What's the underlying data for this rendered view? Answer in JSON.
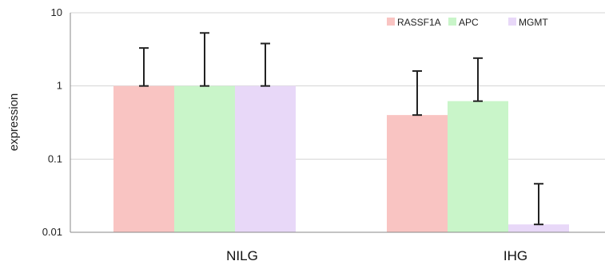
{
  "chart_data": {
    "type": "bar",
    "title": "",
    "xlabel": "",
    "ylabel": "expression",
    "yscale": "log",
    "ylim": [
      0.01,
      10
    ],
    "yticks": [
      {
        "value": 10,
        "label": "10"
      },
      {
        "value": 1,
        "label": "1"
      },
      {
        "value": 0.1,
        "label": "0.1"
      },
      {
        "value": 0.01,
        "label": "0.01"
      }
    ],
    "grid": true,
    "legend": "top-right",
    "categories": [
      "NILG",
      "IHG"
    ],
    "series": [
      {
        "name": "RASSF1A",
        "color": "#f9c4c2",
        "values": [
          1.0,
          0.4
        ],
        "error_upper": [
          3.3,
          1.6
        ]
      },
      {
        "name": "APC",
        "color": "#c9f5c9",
        "values": [
          1.0,
          0.62
        ],
        "error_upper": [
          5.3,
          2.4
        ]
      },
      {
        "name": "MGMT",
        "color": "#e8d8f8",
        "values": [
          1.0,
          0.0128
        ],
        "error_upper": [
          3.8,
          0.046
        ]
      }
    ]
  }
}
